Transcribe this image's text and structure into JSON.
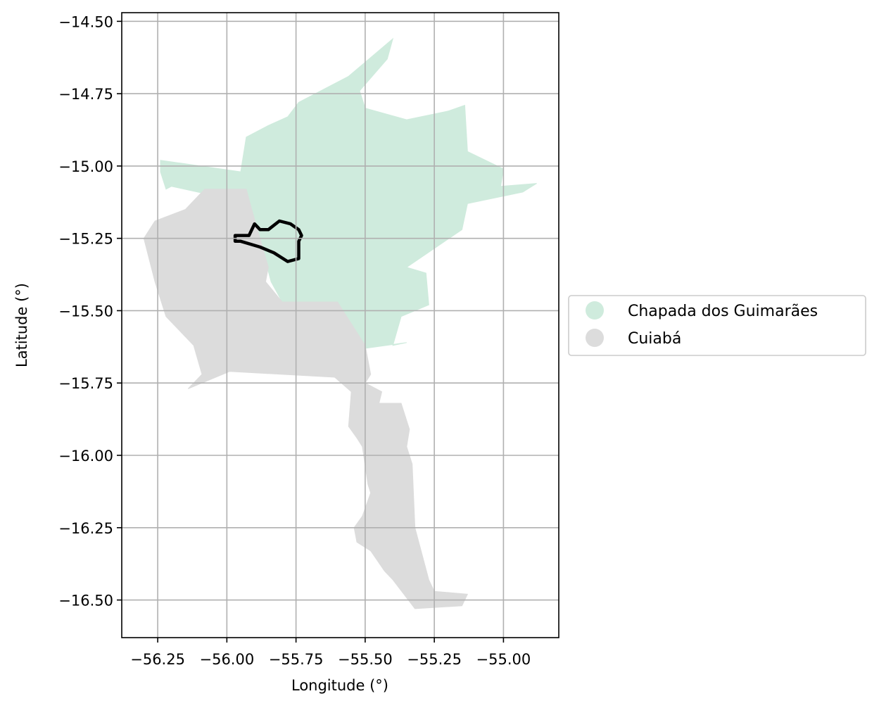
{
  "chart_data": {
    "type": "choropleth-map",
    "xlabel": "Longitude (°)",
    "ylabel": "Latitude (°)",
    "xlim": [
      -56.38,
      -54.8
    ],
    "ylim": [
      -16.63,
      -14.47
    ],
    "x_ticks": [
      -56.25,
      -56.0,
      -55.75,
      -55.5,
      -55.25,
      -55.0
    ],
    "x_tick_labels": [
      "−56.25",
      "−56.00",
      "−55.75",
      "−55.50",
      "−55.25",
      "−55.00"
    ],
    "y_ticks": [
      -14.5,
      -14.75,
      -15.0,
      -15.25,
      -15.5,
      -15.75,
      -16.0,
      -16.25,
      -16.5
    ],
    "y_tick_labels": [
      "−14.50",
      "−14.75",
      "−15.00",
      "−15.25",
      "−15.50",
      "−15.75",
      "−16.00",
      "−16.25",
      "−16.50"
    ],
    "grid": true,
    "legend_position": "right",
    "regions": [
      {
        "name": "Chapada dos Guimarães",
        "color": "#cfebdd",
        "polygon": [
          [
            -56.24,
            -14.98
          ],
          [
            -55.95,
            -15.02
          ],
          [
            -55.93,
            -14.9
          ],
          [
            -55.85,
            -14.86
          ],
          [
            -55.78,
            -14.83
          ],
          [
            -55.74,
            -14.78
          ],
          [
            -55.56,
            -14.69
          ],
          [
            -55.4,
            -14.56
          ],
          [
            -55.42,
            -14.63
          ],
          [
            -55.52,
            -14.74
          ],
          [
            -55.5,
            -14.8
          ],
          [
            -55.35,
            -14.84
          ],
          [
            -55.2,
            -14.81
          ],
          [
            -55.14,
            -14.79
          ],
          [
            -55.13,
            -14.95
          ],
          [
            -55.0,
            -15.01
          ],
          [
            -55.01,
            -15.07
          ],
          [
            -54.88,
            -15.06
          ],
          [
            -54.93,
            -15.09
          ],
          [
            -55.13,
            -15.13
          ],
          [
            -55.15,
            -15.22
          ],
          [
            -55.35,
            -15.35
          ],
          [
            -55.28,
            -15.37
          ],
          [
            -55.27,
            -15.48
          ],
          [
            -55.37,
            -15.52
          ],
          [
            -55.4,
            -15.62
          ],
          [
            -55.35,
            -15.61
          ],
          [
            -55.5,
            -15.63
          ],
          [
            -55.6,
            -15.47
          ],
          [
            -55.8,
            -15.47
          ],
          [
            -55.84,
            -15.4
          ],
          [
            -55.91,
            -15.15
          ],
          [
            -56.01,
            -15.11
          ],
          [
            -56.2,
            -15.07
          ],
          [
            -56.22,
            -15.08
          ],
          [
            -56.24,
            -15.02
          ]
        ]
      },
      {
        "name": "Cuiabá",
        "color": "#dcdcdc",
        "polygon": [
          [
            -56.08,
            -15.08
          ],
          [
            -55.93,
            -15.08
          ],
          [
            -55.91,
            -15.15
          ],
          [
            -55.85,
            -15.35
          ],
          [
            -55.86,
            -15.4
          ],
          [
            -55.8,
            -15.47
          ],
          [
            -55.6,
            -15.47
          ],
          [
            -55.5,
            -15.62
          ],
          [
            -55.48,
            -15.72
          ],
          [
            -55.5,
            -15.75
          ],
          [
            -55.44,
            -15.78
          ],
          [
            -55.45,
            -15.82
          ],
          [
            -55.37,
            -15.82
          ],
          [
            -55.34,
            -15.91
          ],
          [
            -55.35,
            -15.97
          ],
          [
            -55.33,
            -16.03
          ],
          [
            -55.32,
            -16.25
          ],
          [
            -55.27,
            -16.43
          ],
          [
            -55.25,
            -16.47
          ],
          [
            -55.13,
            -16.48
          ],
          [
            -55.15,
            -16.52
          ],
          [
            -55.32,
            -16.53
          ],
          [
            -55.4,
            -16.43
          ],
          [
            -55.43,
            -16.4
          ],
          [
            -55.48,
            -16.33
          ],
          [
            -55.53,
            -16.3
          ],
          [
            -55.54,
            -16.25
          ],
          [
            -55.51,
            -16.21
          ],
          [
            -55.48,
            -16.13
          ],
          [
            -55.49,
            -16.1
          ],
          [
            -55.51,
            -15.97
          ],
          [
            -55.53,
            -15.94
          ],
          [
            -55.56,
            -15.9
          ],
          [
            -55.55,
            -15.78
          ],
          [
            -55.61,
            -15.73
          ],
          [
            -55.99,
            -15.71
          ],
          [
            -56.14,
            -15.77
          ],
          [
            -56.09,
            -15.72
          ],
          [
            -56.12,
            -15.62
          ],
          [
            -56.22,
            -15.52
          ],
          [
            -56.26,
            -15.4
          ],
          [
            -56.3,
            -15.25
          ],
          [
            -56.26,
            -15.19
          ],
          [
            -56.15,
            -15.15
          ]
        ]
      }
    ],
    "outline": {
      "color": "#000000",
      "polygon": [
        [
          -55.97,
          -15.24
        ],
        [
          -55.92,
          -15.24
        ],
        [
          -55.9,
          -15.2
        ],
        [
          -55.88,
          -15.22
        ],
        [
          -55.85,
          -15.22
        ],
        [
          -55.81,
          -15.19
        ],
        [
          -55.77,
          -15.2
        ],
        [
          -55.74,
          -15.22
        ],
        [
          -55.73,
          -15.24
        ],
        [
          -55.74,
          -15.26
        ],
        [
          -55.74,
          -15.32
        ],
        [
          -55.78,
          -15.33
        ],
        [
          -55.83,
          -15.3
        ],
        [
          -55.88,
          -15.28
        ],
        [
          -55.95,
          -15.26
        ],
        [
          -55.97,
          -15.26
        ]
      ]
    },
    "legend": [
      "Chapada dos Guimarães",
      "Cuiabá"
    ]
  }
}
